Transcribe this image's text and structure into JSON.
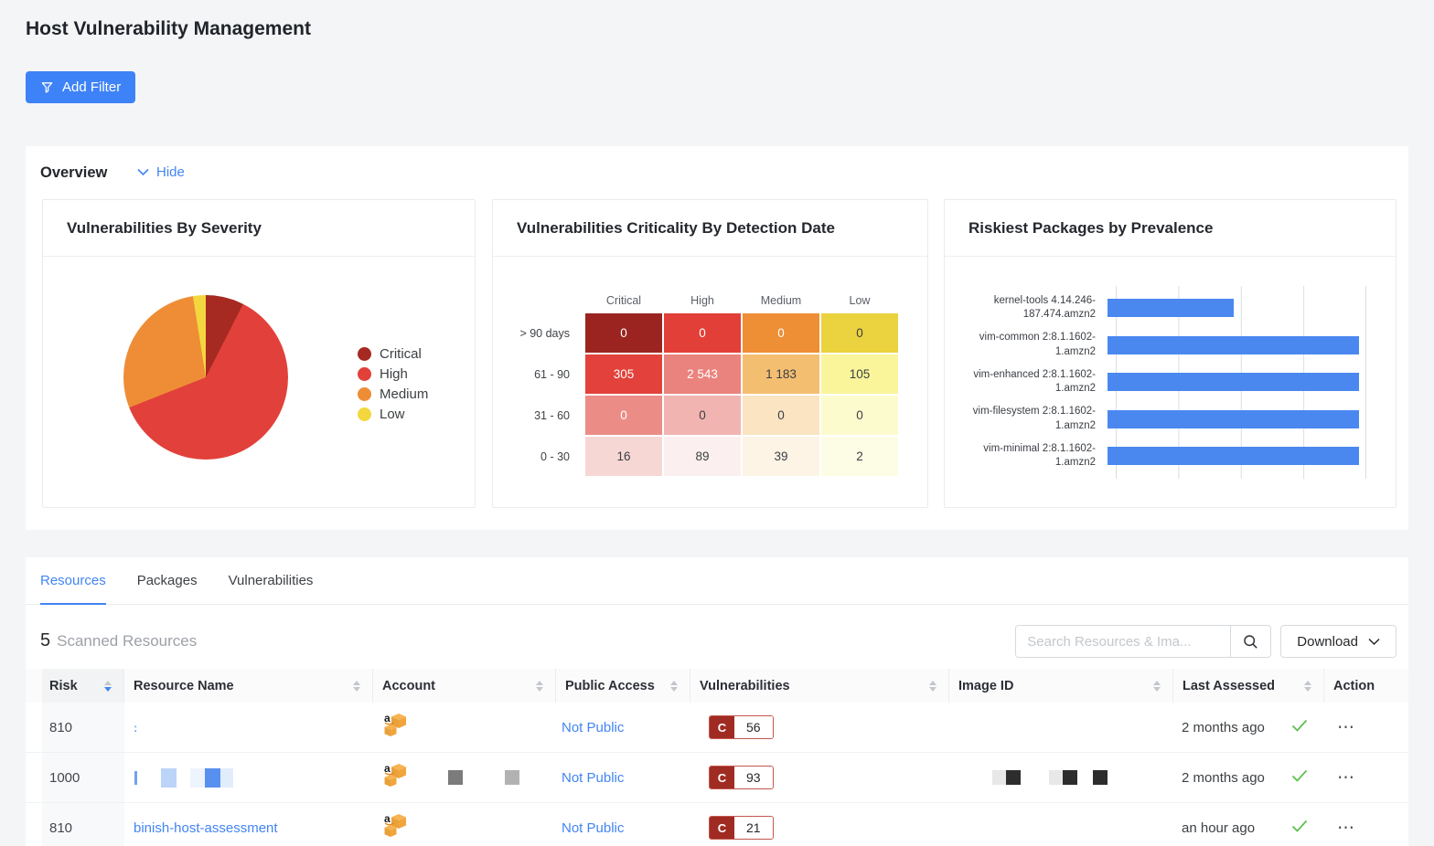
{
  "page": {
    "title": "Host Vulnerability Management"
  },
  "filter_bar": {
    "add_filter_label": "Add Filter"
  },
  "overview": {
    "heading": "Overview",
    "hide_label": "Hide"
  },
  "chart_data": [
    {
      "type": "pie",
      "title": "Vulnerabilities By Severity",
      "legend_position": "right",
      "slices": [
        {
          "label": "Critical",
          "value": 7.5,
          "color": "#A62A21"
        },
        {
          "label": "High",
          "value": 61.5,
          "color": "#E2403A"
        },
        {
          "label": "Medium",
          "value": 28.5,
          "color": "#EE8D36"
        },
        {
          "label": "Low",
          "value": 2.5,
          "color": "#F2D73F"
        }
      ]
    },
    {
      "type": "heatmap",
      "title": "Vulnerabilities Criticality By Detection Date",
      "columns": [
        "Critical",
        "High",
        "Medium",
        "Low"
      ],
      "row_labels": [
        "> 90 days",
        "61 - 90",
        "31 - 60",
        "0 - 30"
      ],
      "values": [
        [
          0,
          0,
          0,
          0
        ],
        [
          305,
          2543,
          1183,
          105
        ],
        [
          0,
          0,
          0,
          0
        ],
        [
          16,
          89,
          39,
          2
        ]
      ],
      "cell_text": [
        [
          "0",
          "0",
          "0",
          "0"
        ],
        [
          "305",
          "2 543",
          "1 183",
          "105"
        ],
        [
          "0",
          "0",
          "0",
          "0"
        ],
        [
          "16",
          "89",
          "39",
          "2"
        ]
      ],
      "cell_colors": [
        [
          "#9B2420",
          "#E23F38",
          "#EE8E35",
          "#EBD23F"
        ],
        [
          "#E2423B",
          "#EA837D",
          "#F4BE71",
          "#FAF59B"
        ],
        [
          "#EB8D86",
          "#F2B4B0",
          "#FAE4C1",
          "#FCFBCE"
        ],
        [
          "#F7D7D4",
          "#FBF0EF",
          "#FDF4E6",
          "#FDFDE5"
        ]
      ],
      "text_colors": [
        [
          "#ffffff",
          "#ffffff",
          "#ffffff",
          "#3b3e43"
        ],
        [
          "#ffffff",
          "#ffffff",
          "#3b3e43",
          "#3b3e43"
        ],
        [
          "#ffffff",
          "#3b3e43",
          "#3b3e43",
          "#3b3e43"
        ],
        [
          "#3b3e43",
          "#3b3e43",
          "#3b3e43",
          "#3b3e43"
        ]
      ]
    },
    {
      "type": "bar",
      "title": "Riskiest Packages by Prevalence",
      "orientation": "horizontal",
      "categories": [
        "kernel-tools 4.14.246-187.474.amzn2",
        "vim-common 2:8.1.1602-1.amzn2",
        "vim-enhanced 2:8.1.1602-1.amzn2",
        "vim-filesystem 2:8.1.1602-1.amzn2",
        "vim-minimal 2:8.1.1602-1.amzn2"
      ],
      "values": [
        1,
        2,
        2,
        2,
        2
      ],
      "xlim": [
        0,
        2
      ],
      "x_gridlines": [
        0,
        0.5,
        1,
        1.5,
        2
      ],
      "bar_color": "#4A88F0"
    }
  ],
  "tabs": [
    {
      "label": "Resources"
    },
    {
      "label": "Packages"
    },
    {
      "label": "Vulnerabilities"
    }
  ],
  "active_tab": "Resources",
  "summary": {
    "count": "5",
    "label": "Scanned Resources"
  },
  "toolbar": {
    "search_placeholder": "Search Resources & Ima...",
    "download_label": "Download"
  },
  "table": {
    "columns": [
      "Risk",
      "Resource Name",
      "Account",
      "Public Access",
      "Vulnerabilities",
      "Image ID",
      "Last Assessed",
      "Action"
    ],
    "sort": {
      "column": "Risk",
      "direction": "desc"
    },
    "action_ellipsis": "⋯",
    "rows": [
      {
        "risk": "810",
        "resource_name": ":",
        "account_icon": "aws",
        "public_access": "Not Public",
        "vuln_severity": "C",
        "vuln_count": "56",
        "image_id": "",
        "last_assessed": "2 months ago",
        "scanned": true
      },
      {
        "risk": "1000",
        "resource_name": "",
        "account_icon": "aws",
        "public_access": "Not Public",
        "vuln_severity": "C",
        "vuln_count": "93",
        "image_id": "",
        "last_assessed": "2 months ago",
        "scanned": true,
        "redactions": {
          "resource": [
            "#6FA3EF",
            "#BBD4F8",
            "#EEF4FD",
            "#5890F0",
            "#E2EDFB"
          ],
          "account": [
            "#7B7B7B",
            "#B2B2B2"
          ],
          "image": [
            "#E8E8E8",
            "#2D2D2D",
            "#E8E8E8",
            "#2D2D2D",
            "#2D2D2D"
          ]
        }
      },
      {
        "risk": "810",
        "resource_name": "binish-host-assessment",
        "account_icon": "aws",
        "public_access": "Not Public",
        "vuln_severity": "C",
        "vuln_count": "21",
        "image_id": "",
        "last_assessed": "an hour ago",
        "scanned": true
      }
    ]
  }
}
